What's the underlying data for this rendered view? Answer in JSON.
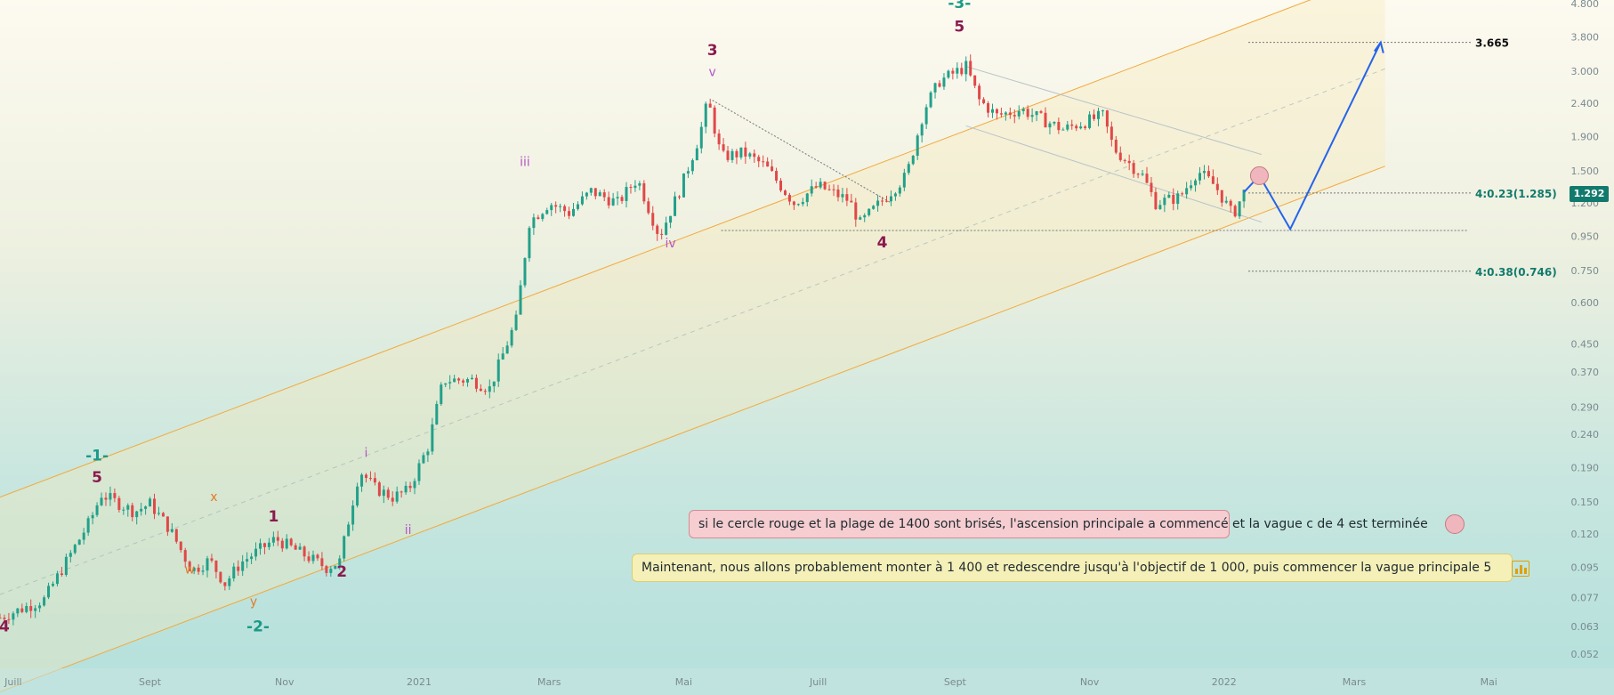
{
  "chart_data": {
    "type": "candlestick",
    "title": "",
    "xlabel": "",
    "ylabel": "",
    "y_scale": "log",
    "ylim": [
      0.048,
      4.8
    ],
    "y_ticks": [
      "4.800",
      "3.800",
      "3.000",
      "2.400",
      "1.900",
      "1.500",
      "1.200",
      "0.950",
      "0.750",
      "0.600",
      "0.450",
      "0.370",
      "0.290",
      "0.240",
      "0.190",
      "0.150",
      "0.120",
      "0.095",
      "0.077",
      "0.063",
      "0.052"
    ],
    "x_ticks": [
      "Juill",
      "Sept",
      "Nov",
      "2021",
      "Mars",
      "Mai",
      "Juill",
      "Sept",
      "Nov",
      "2022",
      "Mars",
      "Mai"
    ],
    "x_range": [
      "2020-06-25",
      "2022-06-05"
    ],
    "grid": false,
    "last_price": "1.292",
    "price_path": [
      [
        "2020-06-25",
        0.067
      ],
      [
        "2020-07-15",
        0.076
      ],
      [
        "2020-08-05",
        0.132
      ],
      [
        "2020-08-10",
        0.158
      ],
      [
        "2020-08-25",
        0.14
      ],
      [
        "2020-09-01",
        0.148
      ],
      [
        "2020-09-10",
        0.124
      ],
      [
        "2020-09-20",
        0.093
      ],
      [
        "2020-09-28",
        0.1
      ],
      [
        "2020-10-05",
        0.085
      ],
      [
        "2020-10-12",
        0.098
      ],
      [
        "2020-10-28",
        0.116
      ],
      [
        "2020-11-20",
        0.095
      ],
      [
        "2020-11-26",
        0.099
      ],
      [
        "2020-12-05",
        0.187
      ],
      [
        "2020-12-12",
        0.165
      ],
      [
        "2020-12-20",
        0.155
      ],
      [
        "2020-12-27",
        0.162
      ],
      [
        "2021-01-05",
        0.22
      ],
      [
        "2021-01-12",
        0.35
      ],
      [
        "2021-01-25",
        0.35
      ],
      [
        "2021-02-02",
        0.33
      ],
      [
        "2021-02-14",
        0.53
      ],
      [
        "2021-02-20",
        1.05
      ],
      [
        "2021-03-01",
        1.2
      ],
      [
        "2021-03-10",
        1.12
      ],
      [
        "2021-03-20",
        1.3
      ],
      [
        "2021-04-01",
        1.2
      ],
      [
        "2021-04-10",
        1.42
      ],
      [
        "2021-04-20",
        0.95
      ],
      [
        "2021-04-30",
        1.35
      ],
      [
        "2021-05-08",
        1.9
      ],
      [
        "2021-05-12",
        2.45
      ],
      [
        "2021-05-18",
        1.65
      ],
      [
        "2021-05-28",
        1.7
      ],
      [
        "2021-06-07",
        1.55
      ],
      [
        "2021-06-20",
        1.2
      ],
      [
        "2021-07-01",
        1.35
      ],
      [
        "2021-07-15",
        1.22
      ],
      [
        "2021-07-20",
        1.04
      ],
      [
        "2021-07-30",
        1.22
      ],
      [
        "2021-08-10",
        1.45
      ],
      [
        "2021-08-18",
        2.3
      ],
      [
        "2021-08-25",
        2.8
      ],
      [
        "2021-09-06",
        3.1
      ],
      [
        "2021-09-12",
        2.45
      ],
      [
        "2021-09-20",
        2.2
      ],
      [
        "2021-10-01",
        2.3
      ],
      [
        "2021-10-20",
        2.0
      ],
      [
        "2021-11-07",
        2.2
      ],
      [
        "2021-11-12",
        1.75
      ],
      [
        "2021-11-25",
        1.45
      ],
      [
        "2021-12-01",
        1.2
      ],
      [
        "2021-12-12",
        1.25
      ],
      [
        "2021-12-20",
        1.5
      ],
      [
        "2021-12-28",
        1.35
      ],
      [
        "2022-01-05",
        1.1
      ],
      [
        "2022-01-10",
        1.292
      ]
    ],
    "projection": [
      [
        "2022-01-10",
        1.292
      ],
      [
        "2022-01-17",
        1.45
      ],
      [
        "2022-01-31",
        1.0
      ],
      [
        "2022-03-13",
        3.665
      ]
    ],
    "levels": [
      {
        "label": "3.665",
        "value": 3.665
      },
      {
        "label": "4:0.23(1.285)",
        "value": 1.285
      },
      {
        "label": "4:0.38(0.746)",
        "value": 0.746
      }
    ],
    "wave_labels": [
      {
        "text": "-1-",
        "date": "2020-08-08",
        "price": 0.2,
        "color": "#1a9a87"
      },
      {
        "text": "5",
        "date": "2020-08-08",
        "price": 0.172,
        "color": "#8b1a4e"
      },
      {
        "text": "x",
        "date": "2020-09-30",
        "price": 0.151,
        "color": "#e07b2a"
      },
      {
        "text": "w",
        "date": "2020-09-19",
        "price": 0.091,
        "color": "#e07b2a"
      },
      {
        "text": "y",
        "date": "2020-10-18",
        "price": 0.073,
        "color": "#e07b2a"
      },
      {
        "text": "-2-",
        "date": "2020-10-20",
        "price": 0.061,
        "color": "#1a9a87"
      },
      {
        "text": "1",
        "date": "2020-10-27",
        "price": 0.131,
        "color": "#8b1a4e"
      },
      {
        "text": "2",
        "date": "2020-11-27",
        "price": 0.089,
        "color": "#8b1a4e"
      },
      {
        "text": "i",
        "date": "2020-12-08",
        "price": 0.205,
        "color": "#b455c7"
      },
      {
        "text": "ii",
        "date": "2020-12-27",
        "price": 0.12,
        "color": "#b455c7"
      },
      {
        "text": "iii",
        "date": "2021-02-18",
        "price": 1.55,
        "color": "#b455c7"
      },
      {
        "text": "iv",
        "date": "2021-04-25",
        "price": 0.88,
        "color": "#b455c7"
      },
      {
        "text": "3",
        "date": "2021-05-14",
        "price": 3.35,
        "color": "#8b1a4e"
      },
      {
        "text": "v",
        "date": "2021-05-14",
        "price": 2.9,
        "color": "#b455c7"
      },
      {
        "text": "4",
        "date": "2021-07-30",
        "price": 0.88,
        "color": "#8b1a4e"
      },
      {
        "text": "-3-",
        "date": "2021-09-03",
        "price": 4.65,
        "color": "#1a9a87"
      },
      {
        "text": "5",
        "date": "2021-09-03",
        "price": 3.95,
        "color": "#8b1a4e"
      },
      {
        "text": "4",
        "date": "2020-06-27",
        "price": 0.061,
        "color": "#8b1a4e"
      }
    ],
    "annotations": [
      "si le cercle rouge et la plage de 1400 sont brisés, l'ascension principale a commencé et la vague c de 4 est terminée",
      "Maintenant, nous allons probablement monter à 1 400 et redescendre jusqu'à l'objectif de 1 000, puis commencer la vague principale 5"
    ]
  },
  "colors": {
    "up": "#22a08a",
    "down": "#e04848",
    "channel": "#f2a93b",
    "projection": "#2563eb",
    "level_text": "#127a6c",
    "axis_text": "#7a8a90"
  }
}
